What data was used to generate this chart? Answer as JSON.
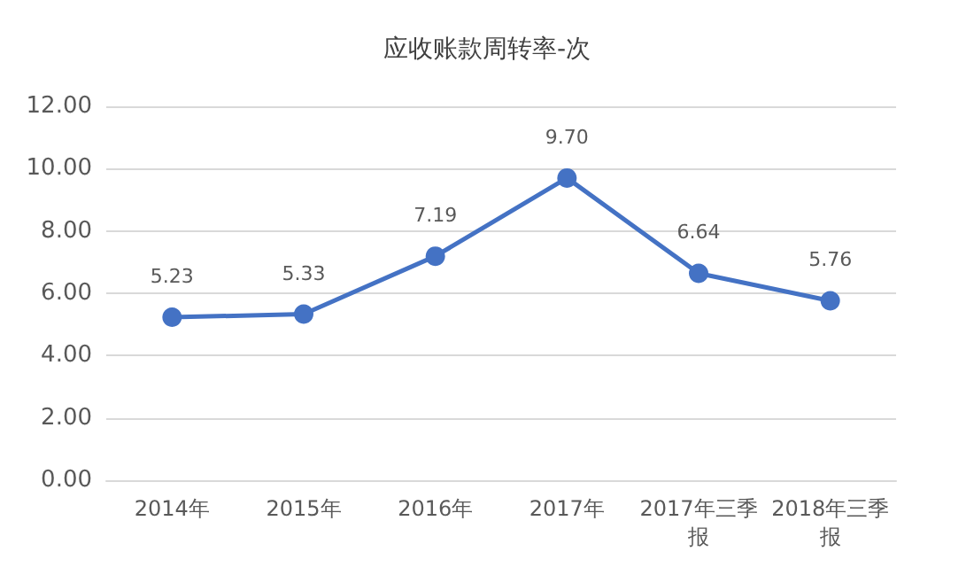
{
  "chart_data": {
    "type": "line",
    "title": "应收账款周转率-次",
    "categories": [
      "2014年",
      "2015年",
      "2016年",
      "2017年",
      "2017年三季报",
      "2018年三季报"
    ],
    "series": [
      {
        "color": "#4472c4",
        "values": [
          5.23,
          5.33,
          7.19,
          9.7,
          6.64,
          5.76
        ],
        "value_labels": [
          "5.23",
          "5.33",
          "7.19",
          "9.70",
          "6.64",
          "5.76"
        ]
      }
    ],
    "ylim": [
      0,
      12
    ],
    "yticks": [
      {
        "value": 0,
        "label": "0.00"
      },
      {
        "value": 2,
        "label": "2.00"
      },
      {
        "value": 4,
        "label": "4.00"
      },
      {
        "value": 6,
        "label": "6.00"
      },
      {
        "value": 8,
        "label": "8.00"
      },
      {
        "value": 10,
        "label": "10.00"
      },
      {
        "value": 12,
        "label": "12.00"
      }
    ],
    "grid": "y",
    "marker": "circle",
    "line_style": "solid"
  }
}
